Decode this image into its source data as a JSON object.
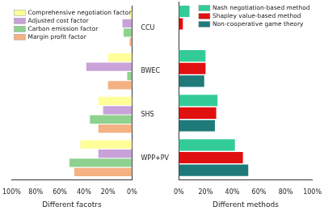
{
  "chart_data": [
    {
      "type": "bar",
      "orientation": "horizontal",
      "x_label": "Different facotrs",
      "categories": [
        "CCU",
        "BWEC",
        "SHS",
        "WPP+PV"
      ],
      "series": [
        {
          "name": "Comprehensive negotiation factor",
          "color": "#ffff99",
          "values": [
            2,
            20,
            28,
            43
          ]
        },
        {
          "name": "Adjusted cost factor",
          "color": "#c8a2d8",
          "values": [
            8,
            38,
            24,
            28
          ]
        },
        {
          "name": "Carbon emission factor",
          "color": "#8fd18f",
          "values": [
            7,
            4,
            35,
            52
          ]
        },
        {
          "name": "Margin profit factor",
          "color": "#f4b183",
          "values": [
            2,
            20,
            28,
            48
          ]
        }
      ],
      "xlim": [
        100,
        0
      ],
      "xticks": [
        {
          "value": 100,
          "label": "100%"
        },
        {
          "value": 80,
          "label": "80%"
        },
        {
          "value": 60,
          "label": "60%"
        },
        {
          "value": 40,
          "label": "40%"
        },
        {
          "value": 20,
          "label": "20%"
        },
        {
          "value": 0,
          "label": "0%"
        }
      ],
      "grid": false,
      "legend": "upper left"
    },
    {
      "type": "bar",
      "orientation": "horizontal",
      "x_label": "Different methods",
      "categories": [
        "CCU",
        "BWEC",
        "SHS",
        "WPP+PV"
      ],
      "series": [
        {
          "name": "Nash negotiation-based method",
          "color": "#33cc99",
          "values": [
            8,
            20,
            29,
            42
          ]
        },
        {
          "name": "Shapley value-based method",
          "color": "#e01010",
          "values": [
            3,
            20,
            28,
            48
          ]
        },
        {
          "name": "Non-cooperative game theory",
          "color": "#1f7a7a",
          "values": [
            0,
            19,
            27,
            52
          ]
        }
      ],
      "xlim": [
        0,
        100
      ],
      "xticks": [
        {
          "value": 0,
          "label": "0%"
        },
        {
          "value": 20,
          "label": "20%"
        },
        {
          "value": 40,
          "label": "40%"
        },
        {
          "value": 60,
          "label": "60%"
        },
        {
          "value": 80,
          "label": "80%"
        },
        {
          "value": 100,
          "label": "100%"
        }
      ],
      "grid": false,
      "legend": "upper right",
      "tick_labels": "x"
    }
  ]
}
